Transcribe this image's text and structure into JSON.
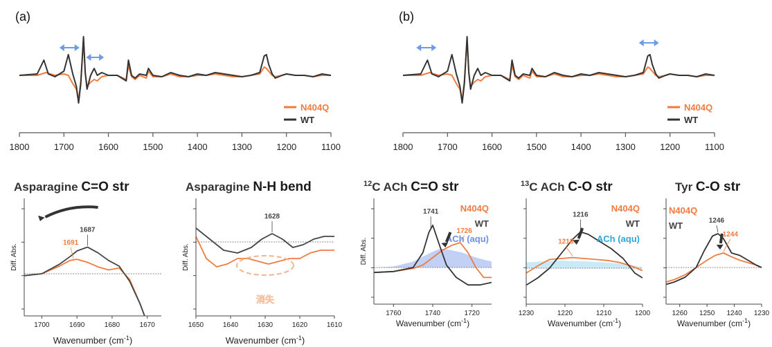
{
  "chart_data": [
    {
      "id": "a",
      "type": "line",
      "panel_label": "(a)",
      "xlim": [
        1800,
        1100
      ],
      "x_ticks": [
        1800,
        1700,
        1600,
        1500,
        1400,
        1300,
        1200,
        1100
      ],
      "legend": [
        "N404Q",
        "WT"
      ],
      "series": [
        {
          "name": "WT",
          "color": "#333333",
          "x": [
            1800,
            1760,
            1745,
            1735,
            1720,
            1700,
            1690,
            1680,
            1672,
            1667,
            1662,
            1656,
            1652,
            1648,
            1640,
            1632,
            1625,
            1615,
            1600,
            1580,
            1560,
            1555,
            1548,
            1540,
            1530,
            1515,
            1510,
            1500,
            1480,
            1460,
            1440,
            1420,
            1400,
            1380,
            1360,
            1340,
            1320,
            1300,
            1280,
            1260,
            1250,
            1245,
            1240,
            1232,
            1225,
            1210,
            1200,
            1180,
            1160,
            1140,
            1120,
            1100
          ],
          "y": [
            0,
            0.05,
            0.55,
            0.05,
            -0.05,
            0.15,
            0.75,
            0.05,
            -0.4,
            -1.0,
            -0.3,
            1.4,
            0.1,
            -0.5,
            0.0,
            0.25,
            0.0,
            0.1,
            0.0,
            0.0,
            -0.2,
            0.55,
            0.0,
            -0.1,
            0.05,
            0.0,
            0.25,
            0.0,
            -0.05,
            0.1,
            0.0,
            -0.05,
            0.05,
            0.0,
            0.1,
            0.05,
            0.0,
            -0.05,
            0.0,
            0.1,
            0.7,
            0.75,
            0.4,
            0.05,
            -0.1,
            0.0,
            0.05,
            0.0,
            0.0,
            -0.05,
            0.05,
            0.0
          ]
        },
        {
          "name": "N404Q",
          "color": "#f07b3f",
          "x": [
            1800,
            1760,
            1740,
            1720,
            1700,
            1690,
            1680,
            1672,
            1667,
            1662,
            1656,
            1652,
            1648,
            1640,
            1632,
            1625,
            1615,
            1600,
            1580,
            1560,
            1555,
            1548,
            1540,
            1530,
            1515,
            1510,
            1500,
            1480,
            1460,
            1440,
            1420,
            1400,
            1380,
            1360,
            1340,
            1320,
            1300,
            1280,
            1260,
            1250,
            1245,
            1240,
            1232,
            1225,
            1210,
            1200,
            1180,
            1160,
            1140,
            1120,
            1100
          ],
          "y": [
            0,
            0.0,
            0.1,
            0.0,
            0.05,
            0.0,
            -0.3,
            -0.5,
            -0.9,
            -0.2,
            1.25,
            0.1,
            -0.4,
            -0.25,
            -0.15,
            -0.2,
            -0.05,
            0.0,
            0.0,
            -0.15,
            0.35,
            -0.05,
            -0.15,
            0.0,
            -0.1,
            0.15,
            -0.05,
            -0.05,
            0.05,
            -0.05,
            -0.05,
            0.0,
            0.0,
            0.05,
            0.0,
            -0.05,
            -0.05,
            0.0,
            0.05,
            0.3,
            0.25,
            0.15,
            0.0,
            -0.05,
            0.0,
            0.05,
            0.0,
            0.0,
            -0.05,
            0.0,
            0.0
          ]
        }
      ]
    },
    {
      "id": "b",
      "type": "line",
      "panel_label": "(b)",
      "xlim": [
        1800,
        1100
      ],
      "x_ticks": [
        1800,
        1700,
        1600,
        1500,
        1400,
        1300,
        1200,
        1100
      ],
      "legend": [
        "N404Q",
        "WT"
      ],
      "series": [
        {
          "name": "WT",
          "color": "#333333",
          "x": [
            1800,
            1760,
            1745,
            1735,
            1720,
            1700,
            1690,
            1680,
            1672,
            1667,
            1662,
            1656,
            1652,
            1648,
            1640,
            1632,
            1625,
            1615,
            1600,
            1580,
            1560,
            1555,
            1548,
            1540,
            1530,
            1515,
            1510,
            1500,
            1480,
            1460,
            1440,
            1420,
            1400,
            1380,
            1360,
            1340,
            1320,
            1300,
            1280,
            1260,
            1250,
            1245,
            1240,
            1232,
            1225,
            1210,
            1200,
            1180,
            1160,
            1140,
            1120,
            1100
          ],
          "y": [
            0,
            0.05,
            0.55,
            0.05,
            -0.05,
            0.15,
            0.75,
            0.05,
            -0.4,
            -1.0,
            -0.3,
            1.4,
            0.1,
            -0.5,
            0.0,
            0.25,
            0.0,
            0.1,
            0.0,
            0.0,
            -0.2,
            0.55,
            0.0,
            -0.1,
            0.05,
            0.0,
            0.25,
            0.0,
            -0.05,
            0.1,
            0.0,
            -0.05,
            0.05,
            0.0,
            0.1,
            0.05,
            0.0,
            -0.05,
            0.0,
            0.1,
            0.7,
            0.75,
            0.4,
            0.05,
            -0.1,
            0.0,
            0.05,
            0.0,
            0.0,
            -0.05,
            0.05,
            0.0
          ]
        },
        {
          "name": "N404Q",
          "color": "#f07b3f",
          "x": [
            1800,
            1760,
            1740,
            1720,
            1700,
            1690,
            1680,
            1672,
            1667,
            1662,
            1656,
            1652,
            1648,
            1640,
            1632,
            1625,
            1615,
            1600,
            1580,
            1560,
            1555,
            1548,
            1540,
            1530,
            1515,
            1510,
            1500,
            1480,
            1460,
            1440,
            1420,
            1400,
            1380,
            1360,
            1340,
            1320,
            1300,
            1280,
            1260,
            1250,
            1245,
            1240,
            1232,
            1225,
            1210,
            1200,
            1180,
            1160,
            1140,
            1120,
            1100
          ],
          "y": [
            0,
            0.0,
            0.1,
            0.0,
            0.05,
            0.0,
            -0.3,
            -0.5,
            -0.9,
            -0.2,
            1.25,
            0.1,
            -0.4,
            -0.25,
            -0.15,
            -0.2,
            -0.05,
            0.0,
            0.0,
            -0.15,
            0.35,
            -0.05,
            -0.15,
            0.0,
            -0.1,
            0.15,
            -0.05,
            -0.05,
            0.05,
            -0.05,
            -0.05,
            0.0,
            0.0,
            0.05,
            0.0,
            -0.05,
            -0.05,
            0.0,
            0.05,
            0.3,
            0.25,
            0.15,
            0.0,
            -0.05,
            0.0,
            0.05,
            0.0,
            0.0,
            -0.05,
            0.0,
            0.0
          ]
        }
      ]
    },
    {
      "id": "c1",
      "type": "line",
      "title_prefix": "Asparagine ",
      "title_highlight": "C=O str",
      "ylabel": "Diff. Abs.",
      "xlabel": "Wavenumber (cm",
      "xlabel_sup": "-1",
      "xlabel_end": ")",
      "xlim": [
        1705,
        1666
      ],
      "x_ticks": [
        1700,
        1690,
        1680,
        1670
      ],
      "peaks": [
        {
          "series": "WT",
          "label": "1687"
        },
        {
          "series": "N404Q",
          "label": "1691"
        }
      ],
      "series": [
        {
          "name": "WT",
          "color": "#444444",
          "x": [
            1705,
            1700,
            1695,
            1692,
            1690,
            1687,
            1684,
            1681,
            1678,
            1675,
            1672,
            1670
          ],
          "y": [
            -0.05,
            0.0,
            0.25,
            0.45,
            0.6,
            0.7,
            0.55,
            0.35,
            0.2,
            -0.2,
            -0.8,
            -1.3
          ]
        },
        {
          "name": "N404Q",
          "color": "#f07b3f",
          "x": [
            1705,
            1700,
            1695,
            1692,
            1690,
            1687,
            1684,
            1681,
            1678,
            1675,
            1672,
            1670
          ],
          "y": [
            -0.05,
            0.0,
            0.2,
            0.35,
            0.38,
            0.3,
            0.18,
            0.1,
            0.15,
            -0.15,
            -0.8,
            -1.3
          ]
        }
      ]
    },
    {
      "id": "c2",
      "type": "line",
      "title_prefix": "Asparagine ",
      "title_highlight": "N-H bend",
      "ylabel": "Diff. Abs.",
      "xlabel": "Wavenumber (cm",
      "xlabel_sup": "-1",
      "xlabel_end": ")",
      "xlim": [
        1650,
        1610
      ],
      "x_ticks": [
        1650,
        1640,
        1630,
        1620,
        1610
      ],
      "peaks": [
        {
          "series": "WT",
          "label": "1628"
        }
      ],
      "annotation": "消失",
      "series": [
        {
          "name": "WT",
          "color": "#444444",
          "x": [
            1650,
            1646,
            1642,
            1638,
            1634,
            1631,
            1628,
            1625,
            1622,
            1619,
            1616,
            1613,
            1610
          ],
          "y": [
            0.25,
            0.05,
            -0.15,
            -0.2,
            -0.1,
            0.05,
            0.15,
            0.05,
            -0.1,
            -0.05,
            0.05,
            0.1,
            0.1
          ]
        },
        {
          "name": "N404Q",
          "color": "#f07b3f",
          "x": [
            1650,
            1647,
            1644,
            1641,
            1638,
            1635,
            1632,
            1629,
            1626,
            1623,
            1620,
            1617,
            1614,
            1610
          ],
          "y": [
            0.1,
            -0.3,
            -0.45,
            -0.4,
            -0.3,
            -0.3,
            -0.35,
            -0.4,
            -0.35,
            -0.3,
            -0.3,
            -0.2,
            -0.15,
            -0.15
          ]
        }
      ]
    },
    {
      "id": "c3",
      "type": "line",
      "title_prefix": "ACh ",
      "title_iso": "12",
      "title_iso_el": "C ",
      "title_highlight": "C=O str",
      "ylabel": "Diff. Abs.",
      "xlabel": "Wavenumber (cm",
      "xlabel_sup": "-1",
      "xlabel_end": ")",
      "xlim": [
        1770,
        1710
      ],
      "x_ticks": [
        1760,
        1740,
        1720
      ],
      "legend": [
        "N404Q",
        "WT",
        "ACh (aqu)"
      ],
      "peaks": [
        {
          "series": "WT",
          "label": "1741"
        },
        {
          "series": "N404Q",
          "label": "1726"
        }
      ],
      "series": [
        {
          "name": "WT",
          "color": "#333333",
          "x": [
            1770,
            1760,
            1750,
            1745,
            1742,
            1740,
            1737,
            1733,
            1728,
            1722,
            1716,
            1710
          ],
          "y": [
            -0.1,
            -0.08,
            0.0,
            0.3,
            0.7,
            0.85,
            0.5,
            0.05,
            -0.2,
            -0.35,
            -0.35,
            -0.3
          ]
        },
        {
          "name": "N404Q",
          "color": "#f07b3f",
          "x": [
            1770,
            1760,
            1750,
            1745,
            1740,
            1735,
            1730,
            1726,
            1722,
            1718,
            1714,
            1710
          ],
          "y": [
            -0.1,
            -0.08,
            -0.02,
            0.05,
            0.2,
            0.35,
            0.45,
            0.5,
            0.3,
            0.0,
            -0.2,
            -0.2
          ]
        },
        {
          "name": "ACh (aqu)",
          "color": "#b7c8f4",
          "fill": true,
          "x": [
            1770,
            1760,
            1750,
            1745,
            1740,
            1736,
            1732,
            1725,
            1718,
            1710
          ],
          "y": [
            0.0,
            0.02,
            0.12,
            0.22,
            0.32,
            0.38,
            0.36,
            0.3,
            0.2,
            0.12
          ]
        }
      ]
    },
    {
      "id": "c4",
      "type": "line",
      "title_prefix": "ACh ",
      "title_iso": "13",
      "title_iso_el": "C ",
      "title_highlight": "C-O str",
      "xlabel": "Wavenumber (cm",
      "xlabel_sup": "-1",
      "xlabel_end": ")",
      "xlim": [
        1230,
        1200
      ],
      "x_ticks": [
        1230,
        1220,
        1210,
        1200
      ],
      "legend": [
        "N404Q",
        "WT",
        "ACh (aqu)"
      ],
      "peaks": [
        {
          "series": "WT",
          "label": "1216"
        },
        {
          "series": "N404Q",
          "label": "1218"
        }
      ],
      "series": [
        {
          "name": "WT",
          "color": "#333333",
          "x": [
            1230,
            1227,
            1224,
            1221,
            1218,
            1216,
            1214,
            1211,
            1208,
            1205,
            1202,
            1200
          ],
          "y": [
            -0.35,
            -0.2,
            0.0,
            0.3,
            0.6,
            0.75,
            0.7,
            0.55,
            0.4,
            0.2,
            -0.1,
            -0.2
          ]
        },
        {
          "name": "N404Q",
          "color": "#f07b3f",
          "x": [
            1230,
            1227,
            1224,
            1221,
            1218,
            1215,
            1212,
            1209,
            1206,
            1203,
            1200
          ],
          "y": [
            -0.1,
            0.05,
            0.18,
            0.2,
            0.22,
            0.2,
            0.18,
            0.16,
            0.12,
            0.05,
            -0.05
          ]
        },
        {
          "name": "ACh (aqu)",
          "color": "#bfe6f4",
          "fill": true,
          "x": [
            1230,
            1226,
            1222,
            1218,
            1214,
            1210,
            1206,
            1203,
            1200
          ],
          "y": [
            0.12,
            0.14,
            0.16,
            0.15,
            0.14,
            0.12,
            0.1,
            0.06,
            0.02
          ]
        }
      ]
    },
    {
      "id": "c5",
      "type": "line",
      "title_prefix": "Tyr ",
      "title_highlight": "C-O str",
      "xlabel": "Wavenumber (cm",
      "xlabel_sup": "-1",
      "xlabel_end": ")",
      "xlim": [
        1265,
        1230
      ],
      "x_ticks": [
        1260,
        1250,
        1240,
        1230
      ],
      "legend": [
        "N404Q",
        "WT"
      ],
      "peaks": [
        {
          "series": "WT",
          "label": "1246"
        },
        {
          "series": "N404Q",
          "label": "1244"
        }
      ],
      "series": [
        {
          "name": "WT",
          "color": "#333333",
          "x": [
            1265,
            1262,
            1258,
            1254,
            1251,
            1248,
            1246,
            1244,
            1241,
            1238,
            1235,
            1232,
            1230
          ],
          "y": [
            -0.35,
            -0.3,
            -0.2,
            0.0,
            0.35,
            0.65,
            0.7,
            0.6,
            0.3,
            0.25,
            0.15,
            0.05,
            0.0
          ]
        },
        {
          "name": "N404Q",
          "color": "#f07b3f",
          "x": [
            1265,
            1262,
            1258,
            1254,
            1250,
            1247,
            1244,
            1241,
            1238,
            1235,
            1232,
            1230
          ],
          "y": [
            -0.3,
            -0.25,
            -0.15,
            0.0,
            0.15,
            0.25,
            0.3,
            0.22,
            0.15,
            0.1,
            0.05,
            0.0
          ]
        }
      ]
    }
  ]
}
